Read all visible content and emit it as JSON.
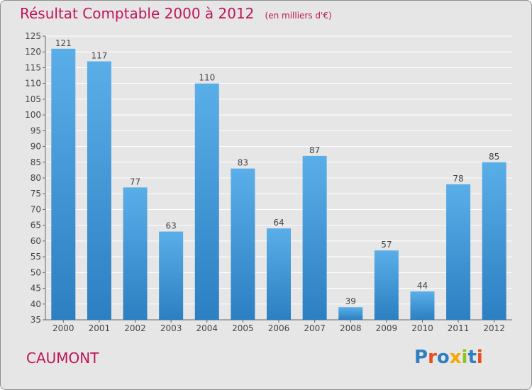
{
  "chart_data": {
    "type": "bar",
    "title": "Résultat Comptable 2000 à 2012",
    "subtitle": "(en milliers d'€)",
    "categories": [
      "2000",
      "2001",
      "2002",
      "2003",
      "2004",
      "2005",
      "2006",
      "2007",
      "2008",
      "2009",
      "2010",
      "2011",
      "2012"
    ],
    "values": [
      121,
      117,
      77,
      63,
      110,
      83,
      64,
      87,
      39,
      57,
      44,
      78,
      85
    ],
    "ylim": [
      35,
      125
    ],
    "yticks": [
      35,
      40,
      45,
      50,
      55,
      60,
      65,
      70,
      75,
      80,
      85,
      90,
      95,
      100,
      105,
      110,
      115,
      120,
      125
    ],
    "grid": true,
    "colors": {
      "bar_top": "#5aaee8",
      "bar_bottom": "#2c7fc1",
      "text": "#c0145a",
      "grid": "#ffffff"
    }
  },
  "place": "CAUMONT",
  "logo": {
    "letters": [
      "P",
      "r",
      "o",
      "x",
      "i",
      "t",
      "i"
    ],
    "colors": [
      "#2e7fc2",
      "#e94e1b",
      "#2e7fc2",
      "#f7a600",
      "#95c11f",
      "#2e7fc2",
      "#e94e1b"
    ]
  }
}
